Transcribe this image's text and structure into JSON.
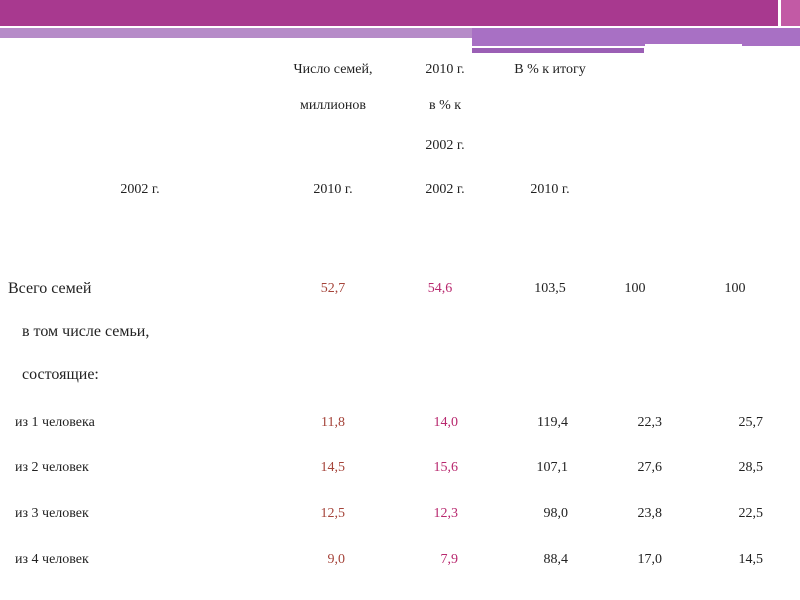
{
  "header": {
    "col1": [
      "Число семей,",
      "миллионов"
    ],
    "col2": [
      "2010 г.",
      "в % к",
      "2002 г."
    ],
    "col3": "В % к итогу",
    "years": [
      "2002 г.",
      "2010 г.",
      "2002 г.",
      "2010 г."
    ]
  },
  "rows": [
    {
      "label": "Всего семей",
      "values": [
        "52,7",
        "54,6",
        "103,5",
        "100",
        "100"
      ]
    },
    {
      "label": "в том числе семьи,"
    },
    {
      "label": "состоящие:"
    },
    {
      "label": "из 1 человека",
      "values": [
        "11,8",
        "14,0",
        "119,4",
        "22,3",
        "25,7"
      ]
    },
    {
      "label": "из 2 человек",
      "values": [
        "14,5",
        "15,6",
        "107,1",
        "27,6",
        "28,5"
      ]
    },
    {
      "label": "из 3 человек",
      "values": [
        "12,5",
        "12,3",
        "98,0",
        "23,8",
        "22,5"
      ]
    },
    {
      "label": "из 4 человек",
      "values": [
        "9,0",
        "7,9",
        "88,4",
        "17,0",
        "14,5"
      ]
    }
  ]
}
